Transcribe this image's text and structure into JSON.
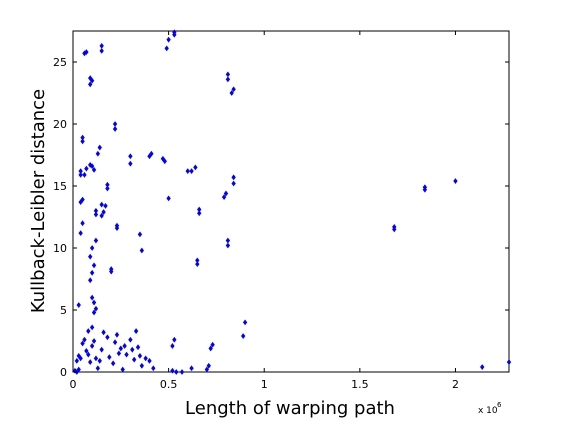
{
  "chart_data": {
    "type": "scatter",
    "xlabel": "Length of warping path",
    "ylabel": "Kullback-Leibler distance",
    "x_exponent_label": "x 10",
    "x_exponent_power": "6",
    "xlim": [
      0,
      2.28
    ],
    "ylim": [
      0,
      27.5
    ],
    "x_ticks": [
      0,
      0.5,
      1,
      1.5,
      2
    ],
    "x_tick_labels": [
      "0",
      "0.5",
      "1",
      "1.5",
      "2"
    ],
    "y_ticks": [
      0,
      5,
      10,
      15,
      20,
      25
    ],
    "y_tick_labels": [
      "0",
      "5",
      "10",
      "15",
      "20",
      "25"
    ],
    "grid": false,
    "marker_color": "#0000ff",
    "points": [
      [
        0.01,
        0.1
      ],
      [
        0.02,
        0.0
      ],
      [
        0.03,
        0.2
      ],
      [
        0.02,
        0.9
      ],
      [
        0.03,
        1.3
      ],
      [
        0.04,
        1.1
      ],
      [
        0.05,
        2.3
      ],
      [
        0.06,
        2.6
      ],
      [
        0.07,
        1.7
      ],
      [
        0.08,
        1.4
      ],
      [
        0.09,
        0.8
      ],
      [
        0.1,
        2.1
      ],
      [
        0.11,
        2.5
      ],
      [
        0.12,
        1.1
      ],
      [
        0.13,
        0.3
      ],
      [
        0.14,
        0.9
      ],
      [
        0.15,
        1.8
      ],
      [
        0.16,
        3.2
      ],
      [
        0.18,
        2.8
      ],
      [
        0.19,
        1.2
      ],
      [
        0.21,
        0.7
      ],
      [
        0.22,
        2.4
      ],
      [
        0.23,
        3.0
      ],
      [
        0.24,
        1.5
      ],
      [
        0.25,
        1.9
      ],
      [
        0.26,
        0.2
      ],
      [
        0.27,
        2.1
      ],
      [
        0.28,
        1.4
      ],
      [
        0.3,
        2.6
      ],
      [
        0.31,
        1.8
      ],
      [
        0.32,
        1.0
      ],
      [
        0.33,
        3.3
      ],
      [
        0.34,
        2.0
      ],
      [
        0.35,
        1.3
      ],
      [
        0.36,
        0.5
      ],
      [
        0.38,
        1.1
      ],
      [
        0.4,
        0.9
      ],
      [
        0.42,
        0.3
      ],
      [
        0.08,
        3.3
      ],
      [
        0.1,
        3.6
      ],
      [
        0.11,
        4.8
      ],
      [
        0.12,
        5.1
      ],
      [
        0.03,
        5.4
      ],
      [
        0.1,
        6.0
      ],
      [
        0.11,
        5.6
      ],
      [
        0.09,
        7.4
      ],
      [
        0.1,
        8.0
      ],
      [
        0.11,
        8.6
      ],
      [
        0.09,
        9.3
      ],
      [
        0.1,
        10.0
      ],
      [
        0.12,
        10.6
      ],
      [
        0.2,
        8.3
      ],
      [
        0.2,
        8.1
      ],
      [
        0.36,
        9.8
      ],
      [
        0.35,
        11.1
      ],
      [
        0.23,
        11.6
      ],
      [
        0.23,
        11.8
      ],
      [
        0.04,
        11.2
      ],
      [
        0.05,
        12.0
      ],
      [
        0.04,
        13.7
      ],
      [
        0.05,
        13.9
      ],
      [
        0.12,
        12.7
      ],
      [
        0.12,
        13.0
      ],
      [
        0.15,
        12.6
      ],
      [
        0.16,
        12.9
      ],
      [
        0.15,
        13.5
      ],
      [
        0.17,
        13.4
      ],
      [
        0.06,
        15.9
      ],
      [
        0.04,
        15.9
      ],
      [
        0.07,
        16.4
      ],
      [
        0.09,
        16.7
      ],
      [
        0.1,
        16.6
      ],
      [
        0.11,
        16.3
      ],
      [
        0.04,
        16.2
      ],
      [
        0.13,
        17.6
      ],
      [
        0.14,
        18.1
      ],
      [
        0.18,
        14.8
      ],
      [
        0.18,
        15.1
      ],
      [
        0.05,
        18.6
      ],
      [
        0.05,
        18.9
      ],
      [
        0.22,
        19.6
      ],
      [
        0.22,
        20.0
      ],
      [
        0.3,
        16.8
      ],
      [
        0.3,
        17.4
      ],
      [
        0.4,
        17.4
      ],
      [
        0.41,
        17.6
      ],
      [
        0.47,
        17.2
      ],
      [
        0.48,
        17.0
      ],
      [
        0.5,
        14.0
      ],
      [
        0.6,
        16.2
      ],
      [
        0.62,
        16.2
      ],
      [
        0.64,
        16.5
      ],
      [
        0.66,
        12.8
      ],
      [
        0.66,
        13.1
      ],
      [
        0.65,
        8.7
      ],
      [
        0.65,
        9.0
      ],
      [
        0.79,
        14.1
      ],
      [
        0.8,
        14.4
      ],
      [
        0.81,
        10.2
      ],
      [
        0.81,
        10.6
      ],
      [
        0.84,
        15.2
      ],
      [
        0.84,
        15.7
      ],
      [
        0.81,
        23.6
      ],
      [
        0.81,
        24.0
      ],
      [
        0.83,
        22.5
      ],
      [
        0.84,
        22.8
      ],
      [
        0.49,
        26.1
      ],
      [
        0.5,
        26.8
      ],
      [
        0.53,
        27.2
      ],
      [
        0.53,
        27.4
      ],
      [
        0.06,
        25.7
      ],
      [
        0.07,
        25.8
      ],
      [
        0.09,
        23.2
      ],
      [
        0.09,
        23.7
      ],
      [
        0.1,
        23.5
      ],
      [
        0.15,
        25.9
      ],
      [
        0.15,
        26.3
      ],
      [
        0.52,
        2.1
      ],
      [
        0.53,
        2.6
      ],
      [
        0.52,
        0.1
      ],
      [
        0.54,
        0.0
      ],
      [
        0.57,
        0.0
      ],
      [
        0.62,
        0.3
      ],
      [
        0.7,
        0.2
      ],
      [
        0.71,
        0.5
      ],
      [
        0.72,
        1.9
      ],
      [
        0.73,
        2.2
      ],
      [
        0.89,
        2.9
      ],
      [
        0.9,
        4.0
      ],
      [
        1.68,
        11.5
      ],
      [
        1.68,
        11.7
      ],
      [
        1.84,
        14.7
      ],
      [
        1.84,
        14.9
      ],
      [
        2.0,
        15.4
      ],
      [
        2.14,
        0.4
      ],
      [
        2.28,
        0.8
      ]
    ]
  }
}
